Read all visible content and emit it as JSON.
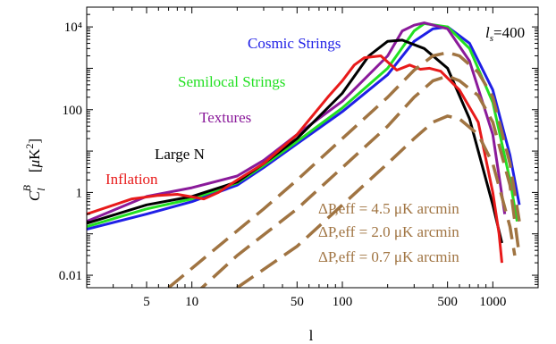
{
  "chart_data": {
    "type": "line",
    "xlabel": "l",
    "ylabel": "C_l^B  [μK²]",
    "x_scale": "log",
    "y_scale": "log",
    "xlim": [
      2,
      2000
    ],
    "ylim": [
      0.005,
      30000
    ],
    "x_ticks": [
      {
        "value": 5,
        "label": "5"
      },
      {
        "value": 10,
        "label": "10"
      },
      {
        "value": 50,
        "label": "50"
      },
      {
        "value": 100,
        "label": "100"
      },
      {
        "value": 500,
        "label": "500"
      },
      {
        "value": 1000,
        "label": "1000"
      }
    ],
    "y_ticks": [
      {
        "value": 0.01,
        "label": "0.01"
      },
      {
        "value": 1,
        "label": "1"
      },
      {
        "value": 100,
        "label": "100"
      },
      {
        "value": 10000,
        "label": "10⁴"
      }
    ],
    "corner_label": "l_s=400",
    "series": [
      {
        "name": "Cosmic Strings",
        "color": "#1f1fe6",
        "style": "solid",
        "points": [
          [
            2,
            0.13
          ],
          [
            5,
            0.3
          ],
          [
            10,
            0.6
          ],
          [
            20,
            1.5
          ],
          [
            30,
            4
          ],
          [
            50,
            15
          ],
          [
            100,
            90
          ],
          [
            200,
            700
          ],
          [
            300,
            4500
          ],
          [
            400,
            9000
          ],
          [
            500,
            10000
          ],
          [
            700,
            4000
          ],
          [
            1000,
            300
          ],
          [
            1300,
            8
          ],
          [
            1500,
            0.5
          ]
        ]
      },
      {
        "name": "Semilocal Strings",
        "color": "#22e022",
        "style": "solid",
        "points": [
          [
            2,
            0.15
          ],
          [
            5,
            0.4
          ],
          [
            10,
            0.7
          ],
          [
            20,
            1.7
          ],
          [
            30,
            4.5
          ],
          [
            50,
            17
          ],
          [
            100,
            110
          ],
          [
            200,
            1000
          ],
          [
            300,
            8000
          ],
          [
            350,
            12000
          ],
          [
            500,
            10000
          ],
          [
            700,
            3000
          ],
          [
            1000,
            150
          ],
          [
            1300,
            2
          ],
          [
            1450,
            0.2
          ]
        ]
      },
      {
        "name": "Textures",
        "color": "#8a1a9a",
        "style": "solid",
        "points": [
          [
            2,
            0.2
          ],
          [
            5,
            0.8
          ],
          [
            10,
            1.3
          ],
          [
            20,
            2.5
          ],
          [
            30,
            6
          ],
          [
            50,
            25
          ],
          [
            100,
            160
          ],
          [
            200,
            2000
          ],
          [
            250,
            8000
          ],
          [
            300,
            11000
          ],
          [
            350,
            12500
          ],
          [
            500,
            9000
          ],
          [
            700,
            1500
          ],
          [
            1000,
            25
          ],
          [
            1200,
            0.3
          ]
        ]
      },
      {
        "name": "Large N",
        "color": "#000000",
        "style": "solid",
        "points": [
          [
            2,
            0.18
          ],
          [
            5,
            0.5
          ],
          [
            10,
            0.8
          ],
          [
            20,
            1.8
          ],
          [
            30,
            5
          ],
          [
            50,
            20
          ],
          [
            100,
            250
          ],
          [
            150,
            2000
          ],
          [
            200,
            4500
          ],
          [
            250,
            4800
          ],
          [
            350,
            3000
          ],
          [
            500,
            1000
          ],
          [
            700,
            60
          ],
          [
            1000,
            0.5
          ],
          [
            1150,
            0.06
          ]
        ]
      },
      {
        "name": "Inflation",
        "color": "#e81a1a",
        "style": "solid",
        "points": [
          [
            2,
            0.3
          ],
          [
            4,
            0.7
          ],
          [
            6,
            0.85
          ],
          [
            8,
            0.9
          ],
          [
            12,
            0.7
          ],
          [
            15,
            1
          ],
          [
            20,
            2
          ],
          [
            30,
            5
          ],
          [
            50,
            25
          ],
          [
            80,
            200
          ],
          [
            100,
            500
          ],
          [
            120,
            1200
          ],
          [
            140,
            1800
          ],
          [
            180,
            2000
          ],
          [
            230,
            900
          ],
          [
            280,
            1200
          ],
          [
            330,
            950
          ],
          [
            380,
            1000
          ],
          [
            450,
            850
          ],
          [
            600,
            300
          ],
          [
            800,
            50
          ],
          [
            1000,
            1
          ],
          [
            1100,
            0.1
          ],
          [
            1150,
            0.02
          ]
        ]
      },
      {
        "name": "ΔP,eff = 4.5 μK arcmin",
        "color": "#a07442",
        "style": "dash",
        "points": [
          [
            7,
            0.005
          ],
          [
            15,
            0.05
          ],
          [
            30,
            0.4
          ],
          [
            50,
            2
          ],
          [
            100,
            20
          ],
          [
            200,
            200
          ],
          [
            300,
            900
          ],
          [
            400,
            2000
          ],
          [
            500,
            2400
          ],
          [
            600,
            2000
          ],
          [
            800,
            800
          ],
          [
            1000,
            200
          ],
          [
            1300,
            5
          ],
          [
            1500,
            0.2
          ]
        ]
      },
      {
        "name": "ΔP,eff = 2.0 μK arcmin",
        "color": "#a07442",
        "style": "dash",
        "points": [
          [
            10,
            0.003
          ],
          [
            20,
            0.03
          ],
          [
            50,
            0.4
          ],
          [
            100,
            4
          ],
          [
            200,
            40
          ],
          [
            300,
            200
          ],
          [
            400,
            500
          ],
          [
            500,
            650
          ],
          [
            600,
            500
          ],
          [
            800,
            220
          ],
          [
            1000,
            50
          ],
          [
            1300,
            1.5
          ],
          [
            1500,
            0.03
          ]
        ]
      },
      {
        "name": "ΔP,eff = 0.7 μK arcmin",
        "color": "#a07442",
        "style": "dash",
        "points": [
          [
            20,
            0.005
          ],
          [
            50,
            0.05
          ],
          [
            100,
            0.5
          ],
          [
            200,
            5
          ],
          [
            300,
            20
          ],
          [
            400,
            50
          ],
          [
            500,
            70
          ],
          [
            600,
            60
          ],
          [
            800,
            25
          ],
          [
            1000,
            5
          ],
          [
            1300,
            0.15
          ],
          [
            1400,
            0.03
          ]
        ]
      }
    ],
    "series_labels": [
      {
        "series": 0,
        "text": "Cosmic Strings",
        "color": "#1f1fe6"
      },
      {
        "series": 1,
        "text": "Semilocal Strings",
        "color": "#22e022"
      },
      {
        "series": 2,
        "text": "Textures",
        "color": "#8a1a9a"
      },
      {
        "series": 3,
        "text": "Large N",
        "color": "#000000"
      },
      {
        "series": 4,
        "text": "Inflation",
        "color": "#e81a1a"
      },
      {
        "series": 5,
        "text": "ΔP,eff = 4.5 μK arcmin",
        "color": "#a07442"
      },
      {
        "series": 6,
        "text": "ΔP,eff = 2.0 μK arcmin",
        "color": "#a07442"
      },
      {
        "series": 7,
        "text": "ΔP,eff = 0.7 μK arcmin",
        "color": "#a07442"
      }
    ],
    "grid": false,
    "legend": "none"
  }
}
